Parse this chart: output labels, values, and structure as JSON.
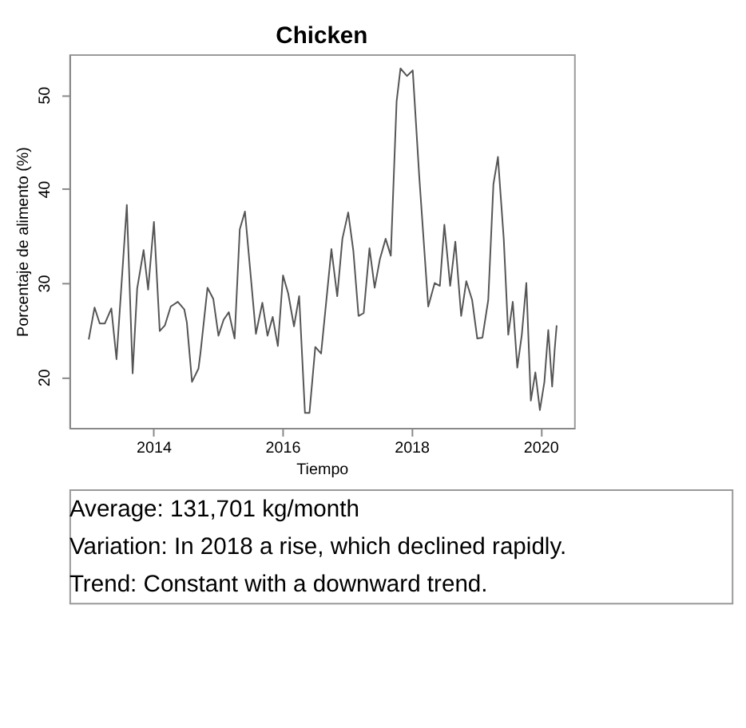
{
  "chart_data": {
    "type": "line",
    "title": "Chicken",
    "xlabel": "Tiempo",
    "ylabel": "Porcentaje de alimento (%)",
    "x": [
      2013.0,
      2013.09,
      2013.17,
      2013.25,
      2013.35,
      2013.43,
      2013.59,
      2013.68,
      2013.75,
      2013.85,
      2013.92,
      2014.01,
      2014.1,
      2014.18,
      2014.27,
      2014.38,
      2014.48,
      2014.52,
      2014.6,
      2014.7,
      2014.73,
      2014.84,
      2014.93,
      2015.01,
      2015.09,
      2015.17,
      2015.26,
      2015.34,
      2015.42,
      2015.59,
      2015.69,
      2015.77,
      2015.85,
      2015.93,
      2016.01,
      2016.09,
      2016.18,
      2016.26,
      2016.35,
      2016.42,
      2016.51,
      2016.6,
      2016.76,
      2016.85,
      2016.93,
      2017.02,
      2017.1,
      2017.18,
      2017.26,
      2017.35,
      2017.43,
      2017.51,
      2017.6,
      2017.68,
      2017.77,
      2017.83,
      2017.93,
      2018.02,
      2018.12,
      2018.26,
      2018.36,
      2018.44,
      2018.51,
      2018.6,
      2018.68,
      2018.77,
      2018.85,
      2018.94,
      2019.02,
      2019.1,
      2019.19,
      2019.27,
      2019.34,
      2019.43,
      2019.5,
      2019.57,
      2019.64,
      2019.71,
      2019.78,
      2019.85,
      2019.92,
      2019.99,
      2020.06,
      2020.12,
      2020.18,
      2020.22,
      2020.25
    ],
    "series": [
      {
        "color": "#555555",
        "values": [
          24.0,
          27.4,
          25.7,
          25.7,
          27.3,
          21.9,
          38.3,
          20.4,
          29.4,
          33.5,
          29.3,
          36.5,
          24.9,
          25.5,
          27.5,
          28.0,
          27.2,
          25.8,
          19.5,
          20.9,
          22.5,
          29.5,
          28.3,
          24.4,
          26.1,
          26.9,
          24.1,
          35.7,
          37.6,
          24.6,
          27.9,
          24.4,
          26.4,
          23.3,
          30.8,
          28.9,
          25.4,
          28.6,
          16.2,
          16.2,
          23.2,
          22.5,
          33.6,
          28.6,
          34.7,
          37.5,
          33.4,
          26.5,
          26.8,
          33.7,
          29.5,
          32.5,
          34.7,
          32.9,
          49.3,
          52.8,
          52.0,
          52.6,
          41.4,
          27.5,
          30.0,
          29.7,
          36.2,
          29.7,
          34.4,
          26.5,
          30.2,
          28.2,
          24.1,
          24.2,
          28.2,
          40.5,
          43.4,
          34.7,
          24.5,
          28.0,
          21.0,
          24.5,
          30.0,
          17.5,
          20.5,
          16.5,
          19.5,
          25.0,
          19.0,
          23.0,
          25.5
        ]
      }
    ],
    "xlim": [
      2012.7,
      2020.52
    ],
    "xticks": [
      2014,
      2016,
      2018,
      2020
    ],
    "ylim": [
      14.6,
      54.3
    ],
    "yticks": [
      20,
      30,
      40,
      50
    ],
    "grid": false,
    "line_style": "solid",
    "annotations": [
      "Average: 131,701 kg/month",
      "Variation: In 2018 a rise, which declined rapidly.",
      "Trend: Constant with a downward trend."
    ]
  }
}
